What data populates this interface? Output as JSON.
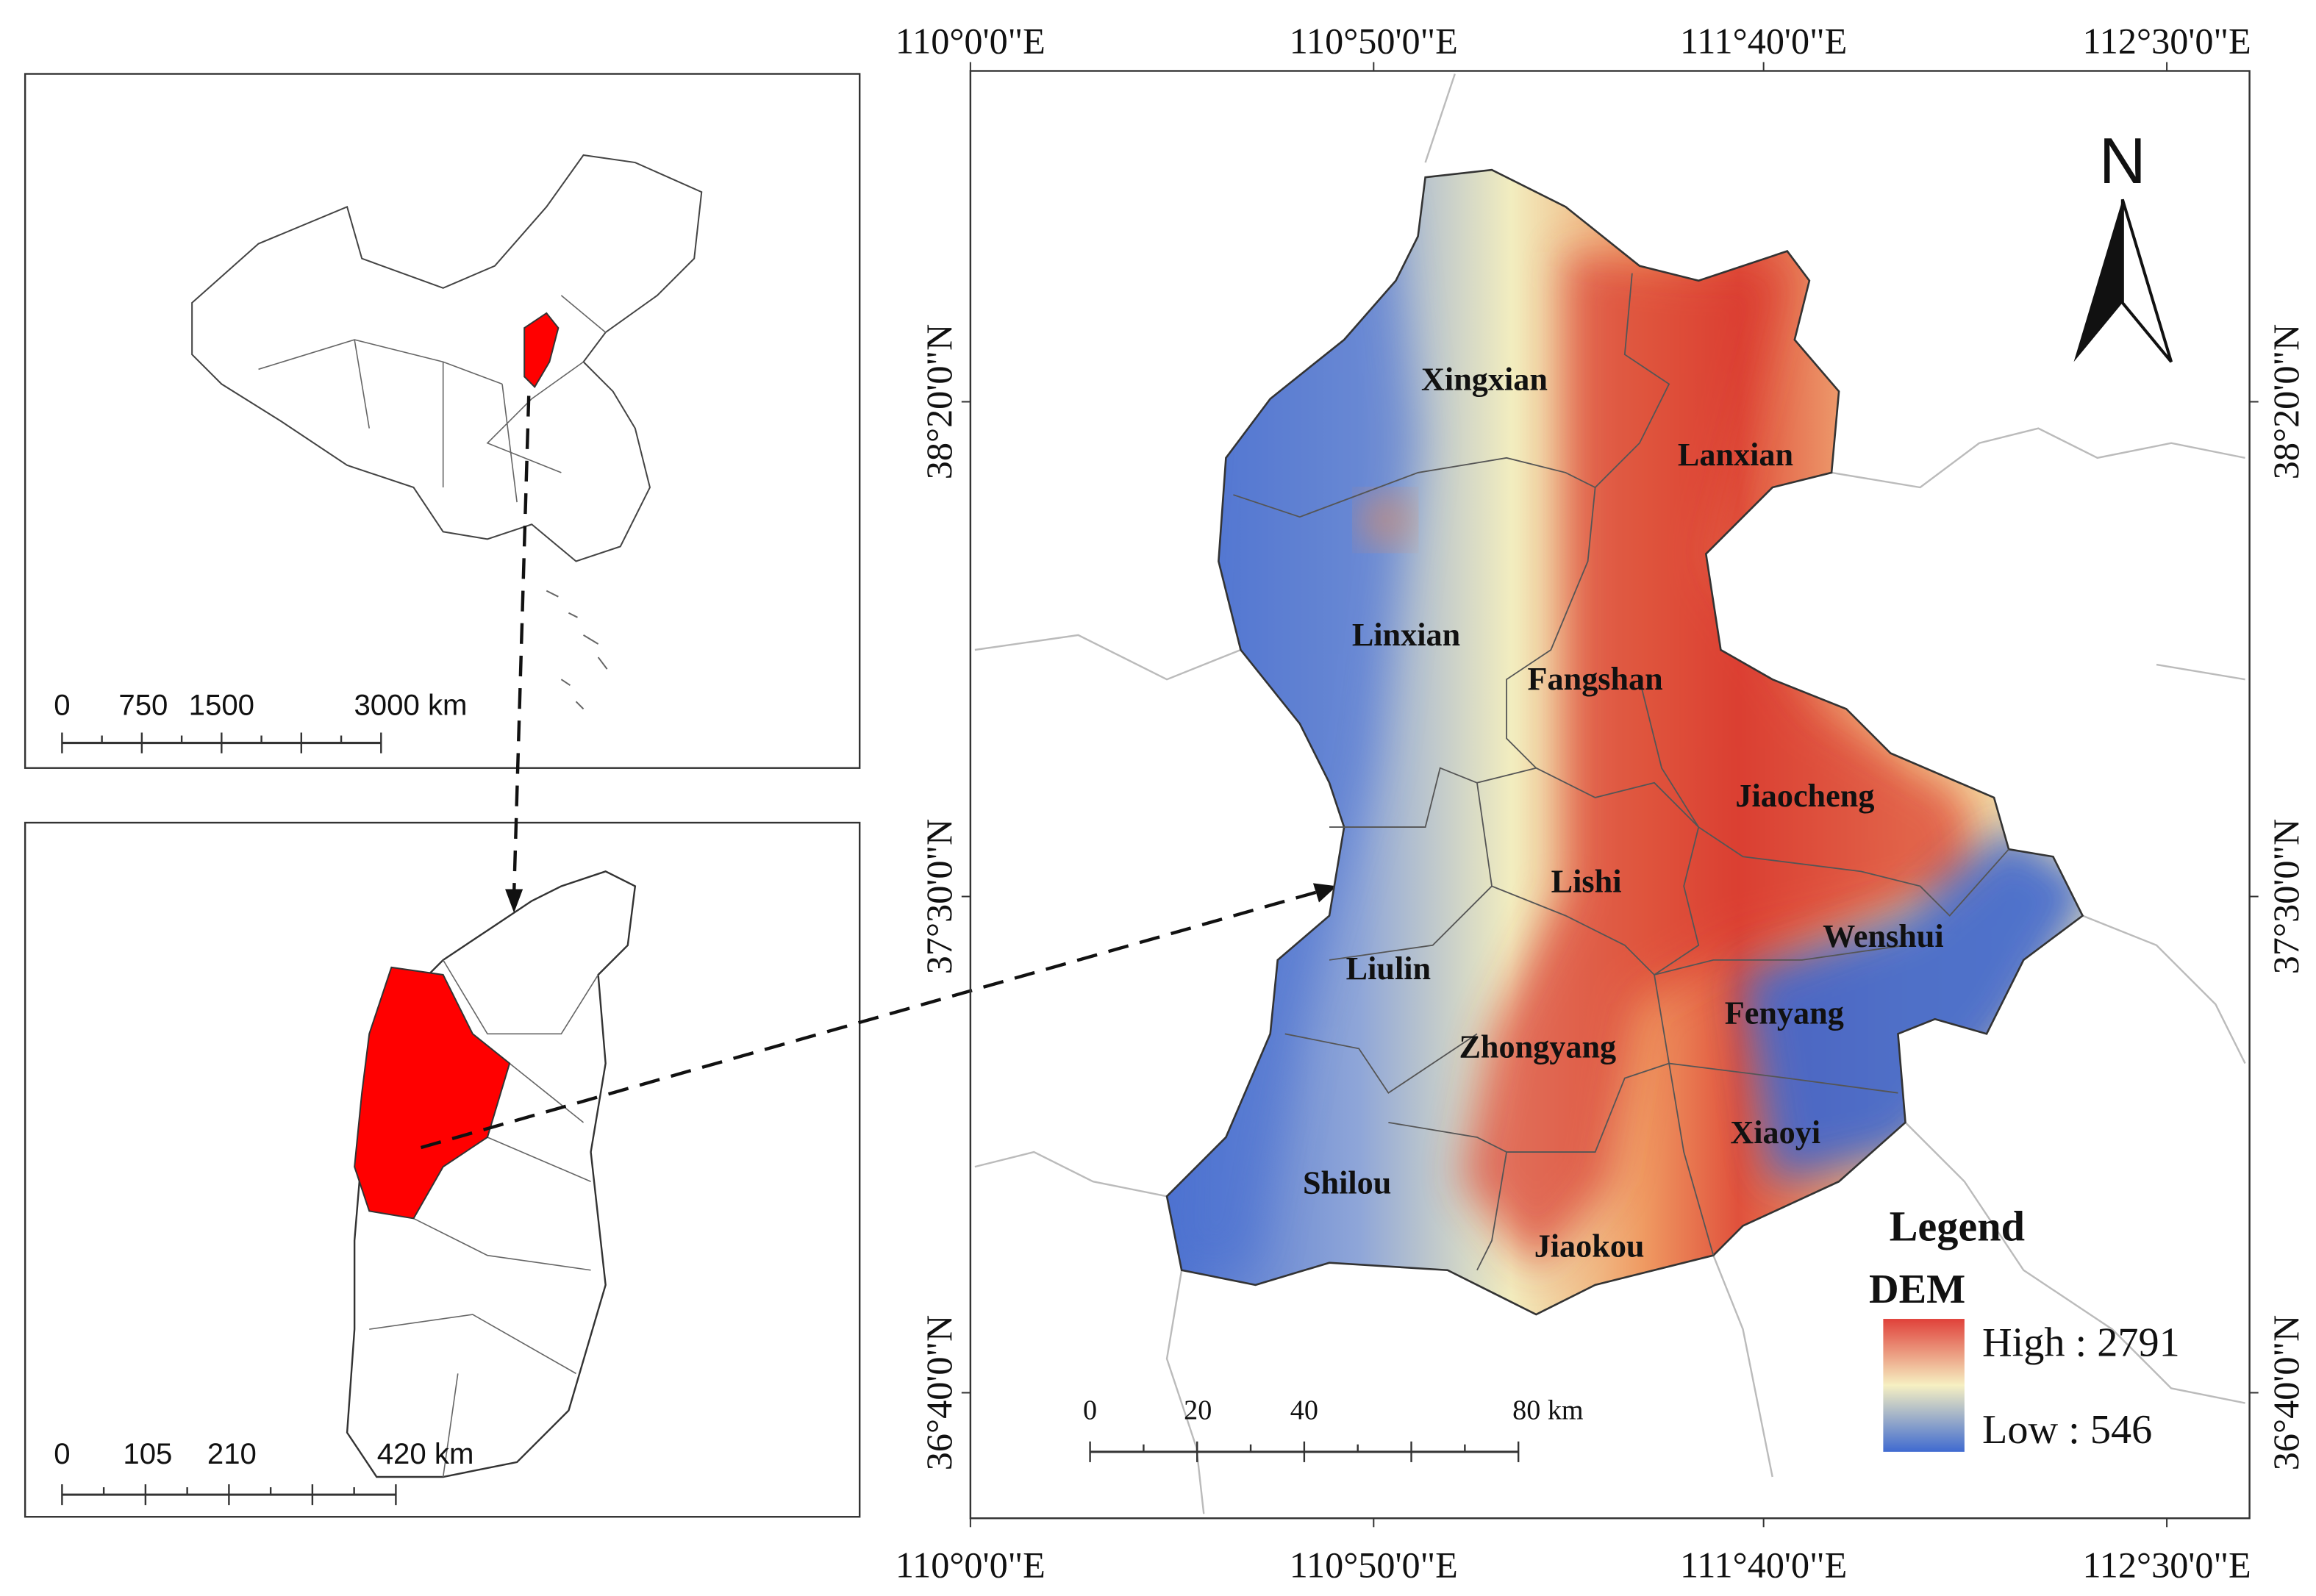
{
  "longitudes": [
    "110°0'0\"E",
    "110°50'0\"E",
    "111°40'0\"E",
    "112°30'0\"E"
  ],
  "latitudes": [
    "38°20'0\"N",
    "37°30'0\"N",
    "36°40'0\"N"
  ],
  "counties": [
    "Xingxian",
    "Lanxian",
    "Linxian",
    "Fangshan",
    "Jiaocheng",
    "Lishi",
    "Wenshui",
    "Liulin",
    "Fenyang",
    "Zhongyang",
    "Xiaoyi",
    "Shilou",
    "Jiaokou"
  ],
  "north_arrow": "N",
  "legend": {
    "title": "Legend",
    "layer": "DEM",
    "high": "High : 2791",
    "low": "Low : 546"
  },
  "scale_bars": {
    "china": [
      "0",
      "750",
      "1500",
      "3000 km"
    ],
    "shanxi": [
      "0",
      "105",
      "210",
      "420 km"
    ],
    "main": [
      "0",
      "20",
      "40",
      "80 km"
    ]
  }
}
